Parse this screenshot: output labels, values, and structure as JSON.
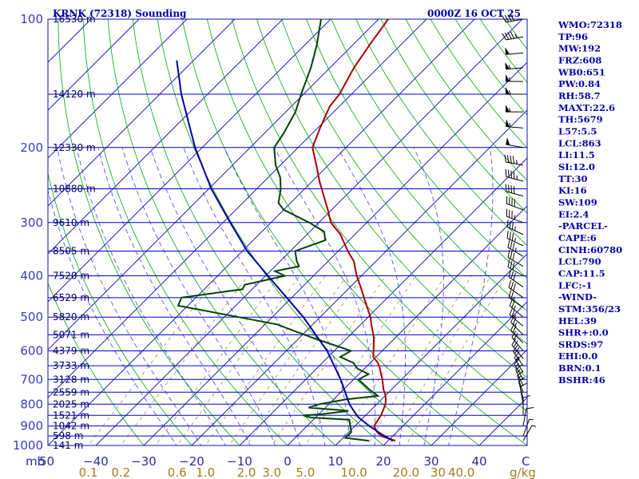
{
  "header": {
    "station": "KRNK (72318) Sounding",
    "time": "0000Z 16 OCT 25"
  },
  "sidebar": [
    "WMO:72318",
    "TP:96",
    "MW:192",
    "FRZ:608",
    "WB0:651",
    "PW:0.84",
    "RH:58.7",
    "MAXT:22.6",
    "TH:5679",
    "L57:5.5",
    "LCL:863",
    "LI:11.5",
    "SI:12.0",
    "TT:30",
    "KI:16",
    "SW:109",
    "EI:2.4",
    "-PARCEL-",
    "CAPE:6",
    "CINH:60780",
    "LCL:790",
    "CAP:11.5",
    "LFC:-1",
    "-WIND-",
    "STM:356/23",
    "HEL:39",
    "SHR+:0.0",
    "SRDS:97",
    "EHI:0.0",
    "BRN:0.1",
    "BSHR:46"
  ],
  "colors": {
    "isobar": "#0000cc",
    "isotherm": "#0000cc",
    "dry_adiabat": "#00aa00",
    "moist_adiabat": "#0000ff",
    "mixing_ratio": "#aa8844",
    "temperature": "#aa0000",
    "dewpoint": "#004400",
    "parcel": "#0000aa"
  },
  "chart_data": {
    "type": "line",
    "title": "KRNK (72318) Sounding",
    "subtitle": "0000Z 16 OCT 25",
    "x_unit_label": "C",
    "y_unit_label": "mb",
    "mixing_unit_label": "g/kg",
    "xlim": [
      -50,
      50
    ],
    "ylim": [
      1000,
      100
    ],
    "y_scale": "log",
    "pressure_ticks": [
      {
        "p": 100,
        "label": "100"
      },
      {
        "p": 200,
        "label": "200"
      },
      {
        "p": 300,
        "label": "300"
      },
      {
        "p": 400,
        "label": "400"
      },
      {
        "p": 500,
        "label": "500"
      },
      {
        "p": 600,
        "label": "600"
      },
      {
        "p": 700,
        "label": "700"
      },
      {
        "p": 800,
        "label": "800"
      },
      {
        "p": 900,
        "label": "900"
      },
      {
        "p": 1000,
        "label": "1000"
      }
    ],
    "height_labels": [
      {
        "p": 100,
        "label": "16530 m"
      },
      {
        "p": 150,
        "label": "14120 m"
      },
      {
        "p": 200,
        "label": "12330 m"
      },
      {
        "p": 250,
        "label": "10880 m"
      },
      {
        "p": 300,
        "label": "9610 m"
      },
      {
        "p": 350,
        "label": "8505 m"
      },
      {
        "p": 400,
        "label": "7520 m"
      },
      {
        "p": 450,
        "label": "6529 m"
      },
      {
        "p": 500,
        "label": "5820 m"
      },
      {
        "p": 550,
        "label": "5071 m"
      },
      {
        "p": 600,
        "label": "4379 m"
      },
      {
        "p": 650,
        "label": "3733 m"
      },
      {
        "p": 700,
        "label": "3128 m"
      },
      {
        "p": 750,
        "label": "2559 m"
      },
      {
        "p": 800,
        "label": "2025 m"
      },
      {
        "p": 850,
        "label": "1521 m"
      },
      {
        "p": 900,
        "label": "1042 m"
      },
      {
        "p": 950,
        "label": "598 m"
      },
      {
        "p": 1000,
        "label": "141 m"
      }
    ],
    "temp_ticks": [
      {
        "t": -40,
        "label": "−40"
      },
      {
        "t": -30,
        "label": "−30"
      },
      {
        "t": -20,
        "label": "−20"
      },
      {
        "t": -10,
        "label": "−10"
      },
      {
        "t": 0,
        "label": "0"
      },
      {
        "t": 10,
        "label": "10"
      },
      {
        "t": 20,
        "label": "20"
      },
      {
        "t": 30,
        "label": "30"
      },
      {
        "t": 40,
        "label": "40"
      }
    ],
    "temp_first_label": "50",
    "mixing_ticks": [
      {
        "w": 0.1,
        "label": "0.1"
      },
      {
        "w": 0.2,
        "label": "0.2"
      },
      {
        "w": 0.6,
        "label": "0.6"
      },
      {
        "w": 1.0,
        "label": "1.0"
      },
      {
        "w": 2.0,
        "label": "2.0"
      },
      {
        "w": 3.0,
        "label": "3.0"
      },
      {
        "w": 5.0,
        "label": "5.0"
      },
      {
        "w": 10.0,
        "label": "10.0"
      },
      {
        "w": 20.0,
        "label": "20.0"
      },
      {
        "w": 30.0,
        "label": "30"
      },
      {
        "w": 40.0,
        "label": "40.0"
      }
    ],
    "dry_adiabats_theta_c": [
      -30,
      -20,
      -10,
      0,
      10,
      20,
      30,
      40,
      50,
      60,
      70,
      80,
      90,
      100,
      110,
      120,
      130,
      140,
      150,
      160,
      170,
      180,
      190,
      200,
      210,
      220
    ],
    "moist_adiabats_c": [
      -20,
      -15,
      -10,
      -5,
      0,
      5,
      10,
      15,
      20,
      25,
      30,
      35
    ],
    "mixing_ratio_lines": [
      0.1,
      0.2,
      0.4,
      0.6,
      1.0,
      1.5,
      2.0,
      3.0,
      5.0,
      8.0,
      12.0,
      16.0,
      20.0
    ],
    "series": [
      {
        "name": "temperature",
        "points": [
          {
            "p": 975,
            "t": 21.5
          },
          {
            "p": 950,
            "t": 17.5
          },
          {
            "p": 925,
            "t": 15.5
          },
          {
            "p": 900,
            "t": 14.0
          },
          {
            "p": 850,
            "t": 13.2
          },
          {
            "p": 820,
            "t": 12.4
          },
          {
            "p": 800,
            "t": 11.8
          },
          {
            "p": 780,
            "t": 10.9
          },
          {
            "p": 760,
            "t": 9.8
          },
          {
            "p": 740,
            "t": 8.4
          },
          {
            "p": 700,
            "t": 6.0
          },
          {
            "p": 660,
            "t": 3.2
          },
          {
            "p": 640,
            "t": 1.6
          },
          {
            "p": 620,
            "t": -0.6
          },
          {
            "p": 600,
            "t": -1.8
          },
          {
            "p": 560,
            "t": -4.4
          },
          {
            "p": 520,
            "t": -7.8
          },
          {
            "p": 500,
            "t": -9.5
          },
          {
            "p": 460,
            "t": -13.8
          },
          {
            "p": 430,
            "t": -17.2
          },
          {
            "p": 400,
            "t": -21.0
          },
          {
            "p": 370,
            "t": -24.6
          },
          {
            "p": 350,
            "t": -28.0
          },
          {
            "p": 320,
            "t": -33.0
          },
          {
            "p": 300,
            "t": -37.5
          },
          {
            "p": 280,
            "t": -40.8
          },
          {
            "p": 260,
            "t": -44.5
          },
          {
            "p": 240,
            "t": -48.5
          },
          {
            "p": 220,
            "t": -52.5
          },
          {
            "p": 200,
            "t": -57.0
          },
          {
            "p": 180,
            "t": -59.5
          },
          {
            "p": 160,
            "t": -62.0
          },
          {
            "p": 150,
            "t": -62.5
          },
          {
            "p": 130,
            "t": -65.0
          },
          {
            "p": 115,
            "t": -66.5
          },
          {
            "p": 100,
            "t": -68.0
          }
        ]
      },
      {
        "name": "dewpoint",
        "points": [
          {
            "p": 975,
            "t": 16.0
          },
          {
            "p": 960,
            "t": 10.5
          },
          {
            "p": 930,
            "t": 10.5
          },
          {
            "p": 870,
            "t": 7.5
          },
          {
            "p": 860,
            "t": -1.0
          },
          {
            "p": 850,
            "t": -3.0
          },
          {
            "p": 845,
            "t": 0.5
          },
          {
            "p": 830,
            "t": 5.5
          },
          {
            "p": 825,
            "t": 3.0
          },
          {
            "p": 815,
            "t": -3.5
          },
          {
            "p": 800,
            "t": -2.0
          },
          {
            "p": 780,
            "t": 2.5
          },
          {
            "p": 765,
            "t": 8.5
          },
          {
            "p": 740,
            "t": 5.5
          },
          {
            "p": 700,
            "t": 1.0
          },
          {
            "p": 680,
            "t": 2.0
          },
          {
            "p": 660,
            "t": -1.5
          },
          {
            "p": 640,
            "t": -3.5
          },
          {
            "p": 620,
            "t": -7.5
          },
          {
            "p": 600,
            "t": -6.5
          },
          {
            "p": 560,
            "t": -17.0
          },
          {
            "p": 520,
            "t": -27.5
          },
          {
            "p": 500,
            "t": -37.0
          },
          {
            "p": 470,
            "t": -52.0
          },
          {
            "p": 450,
            "t": -53.0
          },
          {
            "p": 430,
            "t": -42.0
          },
          {
            "p": 420,
            "t": -42.5
          },
          {
            "p": 400,
            "t": -36.0
          },
          {
            "p": 390,
            "t": -39.0
          },
          {
            "p": 380,
            "t": -35.0
          },
          {
            "p": 370,
            "t": -36.5
          },
          {
            "p": 350,
            "t": -39.0
          },
          {
            "p": 330,
            "t": -35.0
          },
          {
            "p": 315,
            "t": -37.0
          },
          {
            "p": 300,
            "t": -42.0
          },
          {
            "p": 280,
            "t": -50.0
          },
          {
            "p": 270,
            "t": -52.5
          },
          {
            "p": 250,
            "t": -55.0
          },
          {
            "p": 235,
            "t": -57.5
          },
          {
            "p": 220,
            "t": -61.0
          },
          {
            "p": 200,
            "t": -65.0
          },
          {
            "p": 185,
            "t": -66.0
          },
          {
            "p": 165,
            "t": -68.0
          },
          {
            "p": 150,
            "t": -70.5
          },
          {
            "p": 130,
            "t": -74.0
          },
          {
            "p": 115,
            "t": -77.5
          },
          {
            "p": 100,
            "t": -82.0
          }
        ]
      },
      {
        "name": "parcel",
        "points": [
          {
            "p": 975,
            "t": 21.0
          },
          {
            "p": 940,
            "t": 17.2
          },
          {
            "p": 900,
            "t": 13.0
          },
          {
            "p": 860,
            "t": 9.0
          },
          {
            "p": 840,
            "t": 7.4
          },
          {
            "p": 800,
            "t": 4.3
          },
          {
            "p": 700,
            "t": -2.7
          },
          {
            "p": 600,
            "t": -11.5
          },
          {
            "p": 500,
            "t": -23.5
          },
          {
            "p": 400,
            "t": -39.5
          },
          {
            "p": 350,
            "t": -49.0
          },
          {
            "p": 300,
            "t": -58.5
          },
          {
            "p": 250,
            "t": -69.5
          },
          {
            "p": 200,
            "t": -81.5
          },
          {
            "p": 150,
            "t": -95.5
          },
          {
            "p": 125,
            "t": -103.5
          }
        ]
      }
    ],
    "wind_barbs": [
      {
        "p": 100,
        "dir": 260,
        "spd": 40
      },
      {
        "p": 110,
        "dir": 260,
        "spd": 45
      },
      {
        "p": 120,
        "dir": 265,
        "spd": 50
      },
      {
        "p": 130,
        "dir": 265,
        "spd": 55
      },
      {
        "p": 140,
        "dir": 270,
        "spd": 55
      },
      {
        "p": 150,
        "dir": 270,
        "spd": 55
      },
      {
        "p": 165,
        "dir": 270,
        "spd": 55
      },
      {
        "p": 180,
        "dir": 275,
        "spd": 55
      },
      {
        "p": 200,
        "dir": 280,
        "spd": 50
      },
      {
        "p": 220,
        "dir": 280,
        "spd": 45
      },
      {
        "p": 240,
        "dir": 285,
        "spd": 45
      },
      {
        "p": 260,
        "dir": 285,
        "spd": 40
      },
      {
        "p": 280,
        "dir": 290,
        "spd": 40
      },
      {
        "p": 300,
        "dir": 290,
        "spd": 35
      },
      {
        "p": 320,
        "dir": 295,
        "spd": 35
      },
      {
        "p": 340,
        "dir": 295,
        "spd": 35
      },
      {
        "p": 360,
        "dir": 300,
        "spd": 35
      },
      {
        "p": 380,
        "dir": 300,
        "spd": 30
      },
      {
        "p": 400,
        "dir": 300,
        "spd": 30
      },
      {
        "p": 425,
        "dir": 305,
        "spd": 30
      },
      {
        "p": 450,
        "dir": 305,
        "spd": 30
      },
      {
        "p": 475,
        "dir": 305,
        "spd": 25
      },
      {
        "p": 500,
        "dir": 310,
        "spd": 25
      },
      {
        "p": 525,
        "dir": 310,
        "spd": 25
      },
      {
        "p": 550,
        "dir": 315,
        "spd": 25
      },
      {
        "p": 575,
        "dir": 315,
        "spd": 20
      },
      {
        "p": 600,
        "dir": 320,
        "spd": 20
      },
      {
        "p": 625,
        "dir": 320,
        "spd": 20
      },
      {
        "p": 650,
        "dir": 325,
        "spd": 20
      },
      {
        "p": 675,
        "dir": 330,
        "spd": 15
      },
      {
        "p": 700,
        "dir": 330,
        "spd": 15
      },
      {
        "p": 725,
        "dir": 335,
        "spd": 15
      },
      {
        "p": 750,
        "dir": 340,
        "spd": 15
      },
      {
        "p": 775,
        "dir": 345,
        "spd": 10
      },
      {
        "p": 800,
        "dir": 350,
        "spd": 10
      },
      {
        "p": 850,
        "dir": 0,
        "spd": 10
      },
      {
        "p": 900,
        "dir": 10,
        "spd": 10
      },
      {
        "p": 950,
        "dir": 20,
        "spd": 5
      },
      {
        "p": 975,
        "dir": 30,
        "spd": 5
      }
    ]
  }
}
